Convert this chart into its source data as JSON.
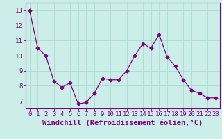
{
  "x": [
    0,
    1,
    2,
    3,
    4,
    5,
    6,
    7,
    8,
    9,
    10,
    11,
    12,
    13,
    14,
    15,
    16,
    17,
    18,
    19,
    20,
    21,
    22,
    23
  ],
  "y": [
    13.0,
    10.5,
    10.0,
    8.3,
    7.9,
    8.2,
    6.8,
    6.9,
    7.5,
    8.5,
    8.4,
    8.4,
    9.0,
    10.0,
    10.8,
    10.5,
    11.4,
    9.9,
    9.3,
    8.4,
    7.7,
    7.5,
    7.2,
    7.2
  ],
  "line_color": "#800080",
  "marker": "D",
  "marker_size": 2.5,
  "background_color": "#cceee8",
  "grid_color": "#aaddcc",
  "xlabel": "Windchill (Refroidissement éolien,°C)",
  "xlabel_color": "#800080",
  "ylabel_ticks": [
    7,
    8,
    9,
    10,
    11,
    12,
    13
  ],
  "xlim": [
    -0.5,
    23.5
  ],
  "ylim": [
    6.5,
    13.5
  ],
  "tick_color": "#800080",
  "spine_color": "#800080",
  "font_size": 6.5,
  "xlabel_fontsize": 7.5
}
